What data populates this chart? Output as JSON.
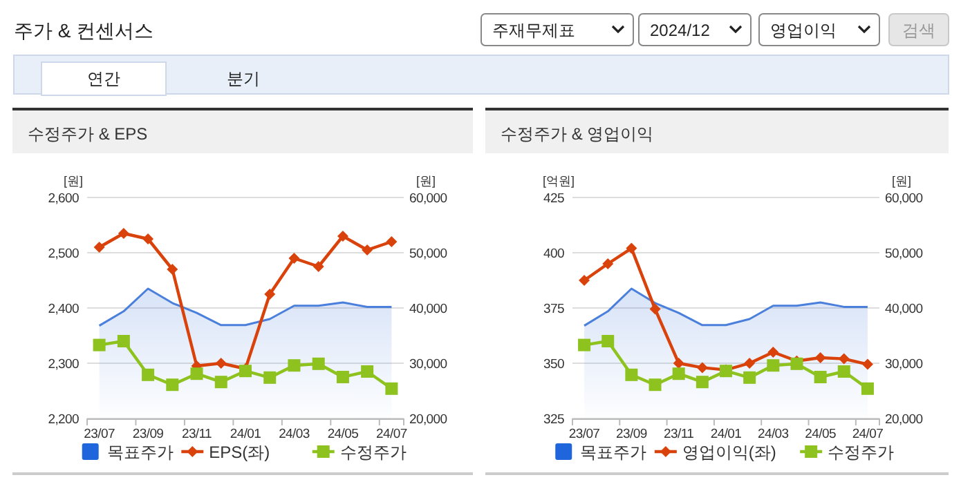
{
  "chart_data": [
    {
      "type": "other",
      "title": "주가 & 컨센서스",
      "annotations": [
        "주재무제표",
        "2024/12",
        "영업이익",
        "검색",
        "연간",
        "분기"
      ]
    },
    {
      "type": "line",
      "title": "수정주가 & EPS",
      "ylabel": "[원]",
      "y2label": "[원]",
      "categories": [
        "23/07",
        null,
        "23/09",
        null,
        "23/11",
        null,
        "24/01",
        null,
        "24/03",
        null,
        "24/05",
        null,
        "24/07"
      ],
      "ylim": [
        2200,
        2600
      ],
      "yticks": [
        {
          "value": 2200,
          "label": "2,200"
        },
        {
          "value": 2300,
          "label": "2,300"
        },
        {
          "value": 2400,
          "label": "2,400"
        },
        {
          "value": 2500,
          "label": "2,500"
        },
        {
          "value": 2600,
          "label": "2,600"
        }
      ],
      "y2lim": [
        20000,
        60000
      ],
      "y2ticks": [
        {
          "value": 20000,
          "label": "20,000"
        },
        {
          "value": 30000,
          "label": "30,000"
        },
        {
          "value": 40000,
          "label": "40,000"
        },
        {
          "value": 50000,
          "label": "50,000"
        },
        {
          "value": 60000,
          "label": "60,000"
        }
      ],
      "grid": "y",
      "legend": "bottom",
      "series": [
        {
          "name": "목표주가",
          "type": "area",
          "axis": "y2",
          "color": "#4a7fdc",
          "marker": "none",
          "values": [
            36800,
            39400,
            43500,
            40900,
            39100,
            36900,
            36900,
            38000,
            40400,
            40400,
            41000,
            40200,
            40200
          ]
        },
        {
          "name": "EPS(좌)",
          "type": "line",
          "color": "#d9420b",
          "marker": "diamond",
          "values": [
            2510,
            2535,
            2525,
            2470,
            2295,
            2300,
            2290,
            2425,
            2490,
            2475,
            2530,
            2505,
            2520
          ]
        },
        {
          "name": "수정주가",
          "type": "line",
          "axis": "y2",
          "color": "#8dc21f",
          "marker": "square",
          "values": [
            33300,
            34000,
            27900,
            26100,
            28100,
            26600,
            28600,
            27400,
            29600,
            29900,
            27500,
            28500,
            25400
          ]
        }
      ]
    },
    {
      "type": "line",
      "title": "수정주가 & 영업이익",
      "ylabel": "[억원]",
      "y2label": "[원]",
      "categories": [
        "23/07",
        null,
        "23/09",
        null,
        "23/11",
        null,
        "24/01",
        null,
        "24/03",
        null,
        "24/05",
        null,
        "24/07"
      ],
      "ylim": [
        325,
        425
      ],
      "yticks": [
        325,
        350,
        375,
        400,
        425
      ],
      "y2lim": [
        20000,
        60000
      ],
      "y2ticks": [
        {
          "value": 20000,
          "label": "20,000"
        },
        {
          "value": 30000,
          "label": "30,000"
        },
        {
          "value": 40000,
          "label": "40,000"
        },
        {
          "value": 50000,
          "label": "50,000"
        },
        {
          "value": 60000,
          "label": "60,000"
        }
      ],
      "grid": "y",
      "legend": "bottom",
      "series": [
        {
          "name": "목표주가",
          "type": "area",
          "axis": "y2",
          "color": "#4a7fdc",
          "marker": "none",
          "values": [
            36800,
            39400,
            43500,
            40900,
            39100,
            36900,
            36900,
            38000,
            40400,
            40400,
            41000,
            40200,
            40200
          ]
        },
        {
          "name": "영업이익(좌)",
          "type": "line",
          "color": "#d9420b",
          "marker": "diamond",
          "values": [
            387.5,
            395,
            402,
            374.5,
            350,
            348,
            347,
            350,
            355,
            351,
            352.5,
            352,
            349.5
          ]
        },
        {
          "name": "수정주가",
          "type": "line",
          "axis": "y2",
          "color": "#8dc21f",
          "marker": "square",
          "values": [
            33300,
            34000,
            27900,
            26100,
            28100,
            26600,
            28600,
            27400,
            29600,
            29900,
            27500,
            28500,
            25400
          ]
        }
      ]
    }
  ]
}
